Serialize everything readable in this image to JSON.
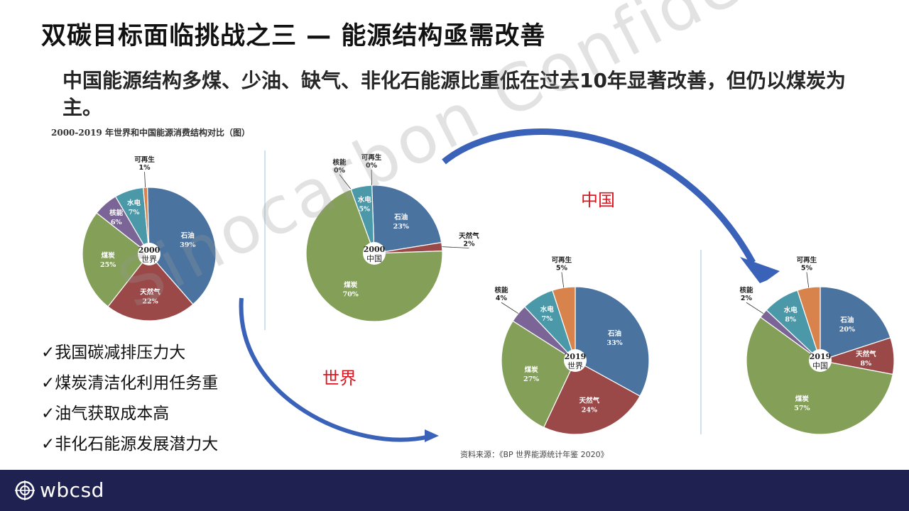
{
  "title": "双碳目标面临挑战之三 — 能源结构亟需改善",
  "subtitle": "中国能源结构多煤、少油、缺气、非化石能源比重低在过去10年显著改善，但仍以煤炭为主。",
  "chart_caption": "2000-2019 年世界和中国能源消费结构对比（图）",
  "watermark": "Sinocarbon Confidential",
  "arrow_labels": {
    "china": "中国",
    "world": "世界"
  },
  "bullets": [
    "✓我国碳减排压力大",
    "✓煤炭清洁化利用任务重",
    "✓油气获取成本高",
    "✓非化石能源发展潜力大"
  ],
  "source": "资料来源：《BP 世界能源统计年鉴 2020》",
  "footer": {
    "logo_text": "wbcsd"
  },
  "colors": {
    "石油": "#4a73a0",
    "天然气": "#9b4848",
    "煤炭": "#84a058",
    "核能": "#7a6596",
    "水电": "#4a98a8",
    "可再生": "#d8824c",
    "red": "#e0141e",
    "footer": "#1f2150",
    "arrow": "#3a62b8"
  },
  "chart_data": [
    {
      "type": "pie",
      "title": "2000 世界",
      "center_year": "2000",
      "center_region": "世界",
      "labels": [
        "石油",
        "天然气",
        "煤炭",
        "核能",
        "水电",
        "可再生"
      ],
      "values": [
        39,
        22,
        25,
        6,
        7,
        1
      ],
      "display": [
        "39%",
        "22%",
        "25%",
        "6%",
        "7%",
        "1%"
      ]
    },
    {
      "type": "pie",
      "title": "2000 中国",
      "center_year": "2000",
      "center_region": "中国",
      "labels": [
        "石油",
        "天然气",
        "煤炭",
        "核能",
        "水电",
        "可再生"
      ],
      "values": [
        23,
        2,
        70,
        0,
        5,
        0
      ],
      "display": [
        "23%",
        "2%",
        "70%",
        "0%",
        "5%",
        "0%"
      ]
    },
    {
      "type": "pie",
      "title": "2019 世界",
      "center_year": "2019",
      "center_region": "世界",
      "labels": [
        "石油",
        "天然气",
        "煤炭",
        "核能",
        "水电",
        "可再生"
      ],
      "values": [
        33,
        24,
        27,
        4,
        7,
        5
      ],
      "display": [
        "33%",
        "24%",
        "27%",
        "4%",
        "7%",
        "5%"
      ]
    },
    {
      "type": "pie",
      "title": "2019 中国",
      "center_year": "2019",
      "center_region": "中国",
      "labels": [
        "石油",
        "天然气",
        "煤炭",
        "核能",
        "水电",
        "可再生"
      ],
      "values": [
        20,
        8,
        57,
        2,
        8,
        5
      ],
      "display": [
        "20%",
        "8%",
        "57%",
        "2%",
        "8%",
        "5%"
      ]
    }
  ]
}
